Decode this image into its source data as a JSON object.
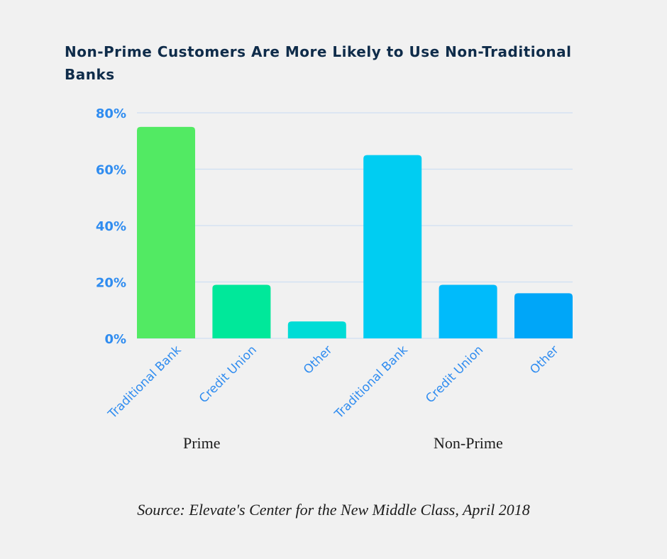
{
  "chart_data": {
    "type": "bar",
    "title": "Non-Prime Customers Are More Likely to Use Non-Traditional Banks",
    "xlabel": "",
    "ylabel": "",
    "ylim": [
      0,
      80
    ],
    "yticks": [
      0,
      20,
      40,
      60,
      80
    ],
    "ytick_labels": [
      "0%",
      "20%",
      "40%",
      "60%",
      "80%"
    ],
    "grid": true,
    "categories": [
      "Traditional Bank",
      "Credit Union",
      "Other",
      "Traditional Bank",
      "Credit Union",
      "Other"
    ],
    "groups": [
      {
        "name": "Prime",
        "category_indices": [
          0,
          1,
          2
        ]
      },
      {
        "name": "Non-Prime",
        "category_indices": [
          3,
          4,
          5
        ]
      }
    ],
    "values": [
      75,
      19,
      6,
      65,
      19,
      16
    ],
    "bar_colors": [
      "#52ea63",
      "#00e89a",
      "#00dcd6",
      "#00cdf2",
      "#00bbfb",
      "#00a6f8"
    ],
    "source": "Source: Elevate's Center for the New Middle Class, April 2018"
  },
  "colors": {
    "background": "#f1f1f1",
    "title": "#0f2c4a",
    "tick_text": "#2f8cf0",
    "gridline": "#cfe0f3"
  }
}
